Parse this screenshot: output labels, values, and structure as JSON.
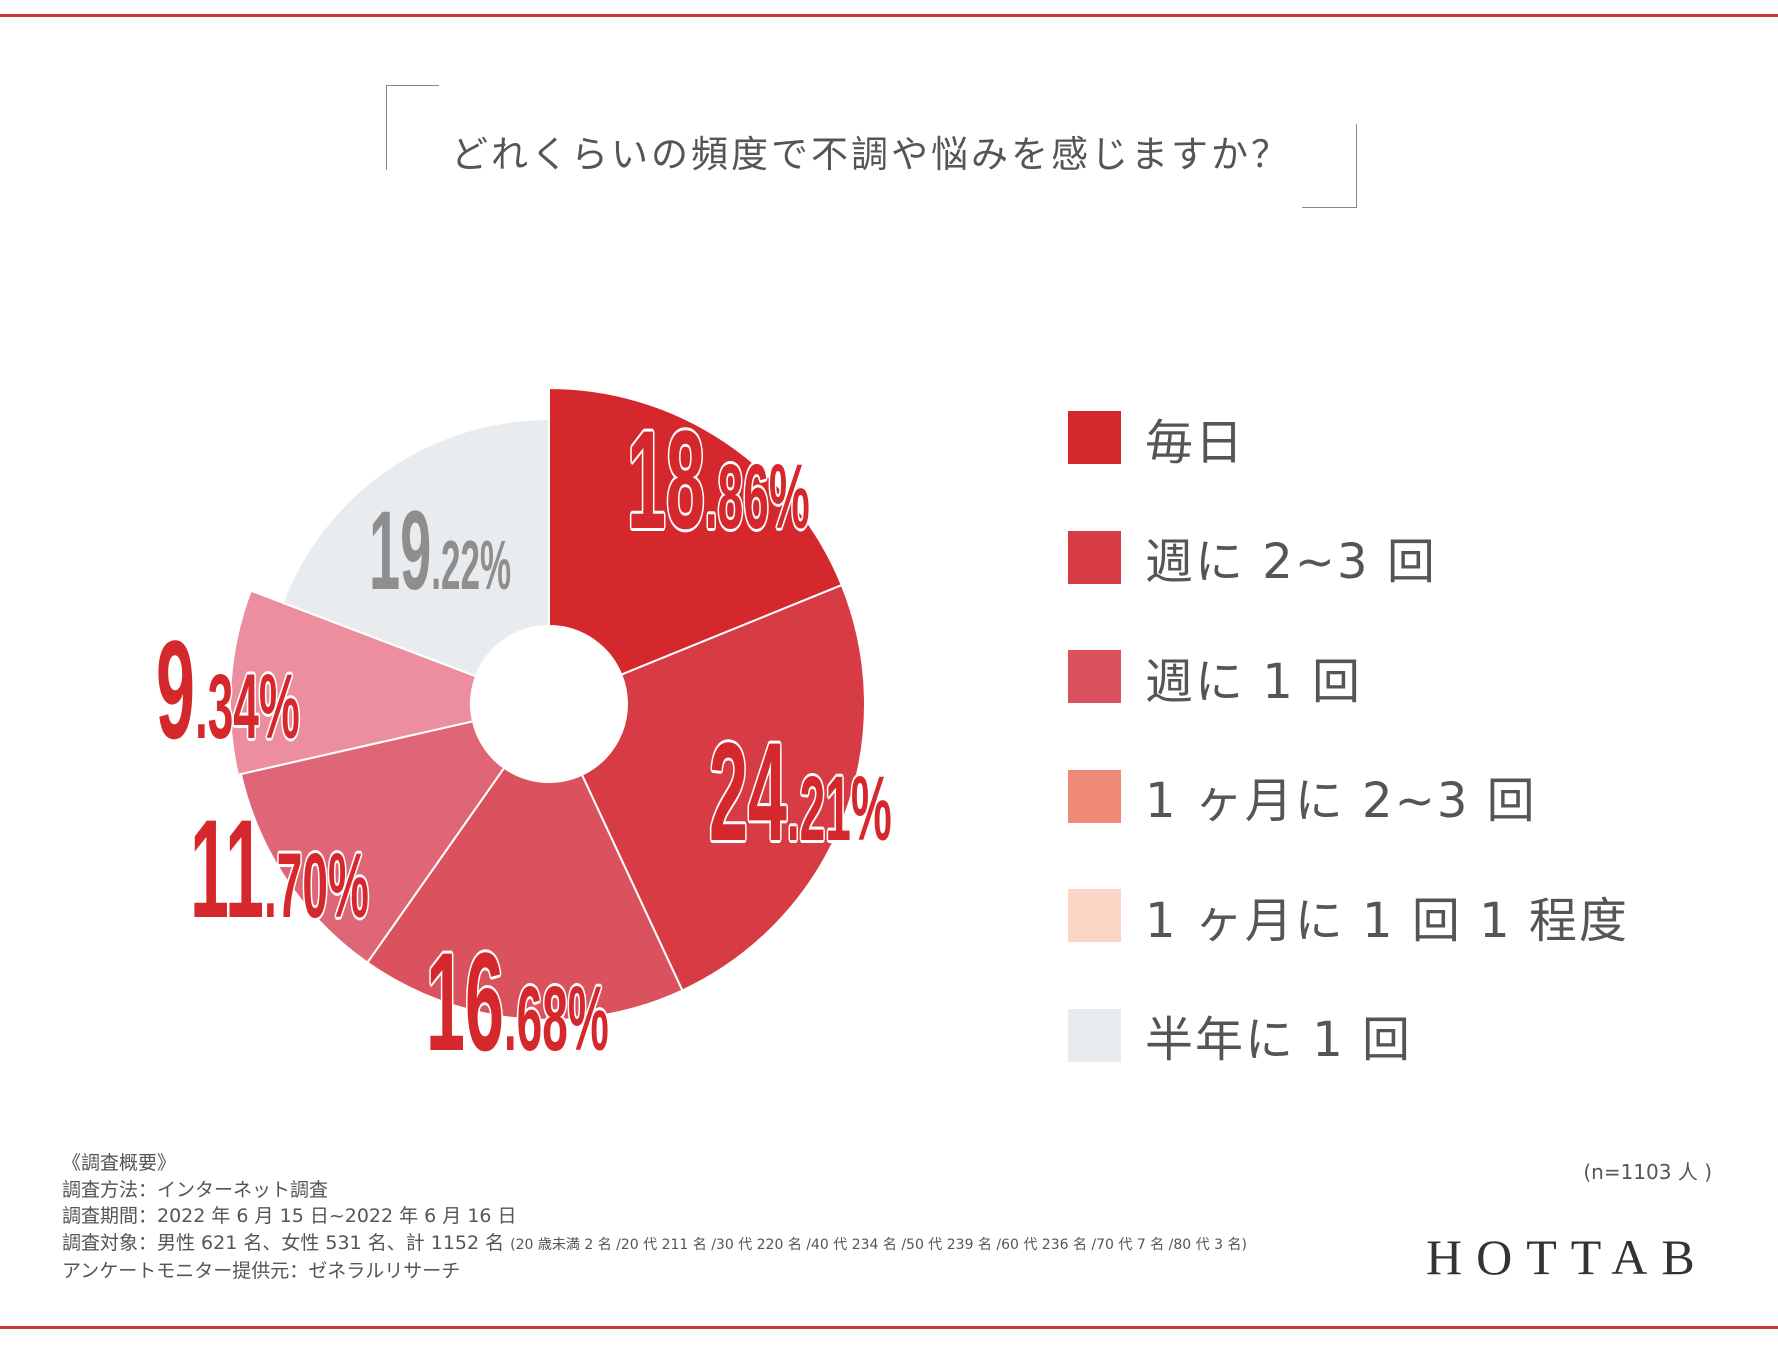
{
  "title": "どれくらいの頻度で不調や悩みを感じますか？",
  "colors": {
    "rule": "#c6393b"
  },
  "chart_data": {
    "type": "pie",
    "variant": "donut with variable radius",
    "title": "どれくらいの頻度で不調や悩みを感じますか？",
    "categories": [
      "毎日",
      "週に 2~3 回",
      "週に 1 回",
      "1 ヶ月に 2~3 回",
      "1 ヶ月に 1 回 1 程度",
      "半年に 1 回"
    ],
    "legend_colors": [
      "#d5282d",
      "#d73c45",
      "#da525e",
      "#ee8a76",
      "#fdd5c6",
      "#e9ecef"
    ],
    "slices": [
      {
        "value": 18.86,
        "label": "18.86%",
        "color": "#d5282d",
        "label_color": "#d5282d"
      },
      {
        "value": 24.21,
        "label": "24.21%",
        "color": "#d73c45",
        "label_color": "#d5282d"
      },
      {
        "value": 16.68,
        "label": "16.68%",
        "color": "#da525e",
        "label_color": "#d5282d"
      },
      {
        "value": 11.7,
        "label": "11.70%",
        "color": "#de6676",
        "label_color": "#d5282d"
      },
      {
        "value": 9.34,
        "label": "9.34%",
        "color": "#ec8e9e",
        "label_color": "#d5282d"
      },
      {
        "value": 19.22,
        "label": "19.22%",
        "color": "#e9ecef",
        "label_color": "#8e8e8e"
      }
    ],
    "legend_position": "right"
  },
  "notes": {
    "heading": "《調査概要》",
    "method": "調査方法：インターネット調査",
    "period": "調査期間：2022 年 6 月 15 日~2022 年 6 月 16 日",
    "target": "調査対象：男性 621 名、女性 531 名、計 1152 名",
    "target_breakdown": "(20 歳未満 2 名 /20 代 211 名 /30 代 220 名 /40 代 234 名 /50 代 239 名 /60 代 236 名 /70 代 7 名 /80 代 3 名)",
    "provider": "アンケートモニター提供元：ゼネラルリサーチ"
  },
  "sample_size": "(n=1103 人 )",
  "logo": "HOTTAB"
}
